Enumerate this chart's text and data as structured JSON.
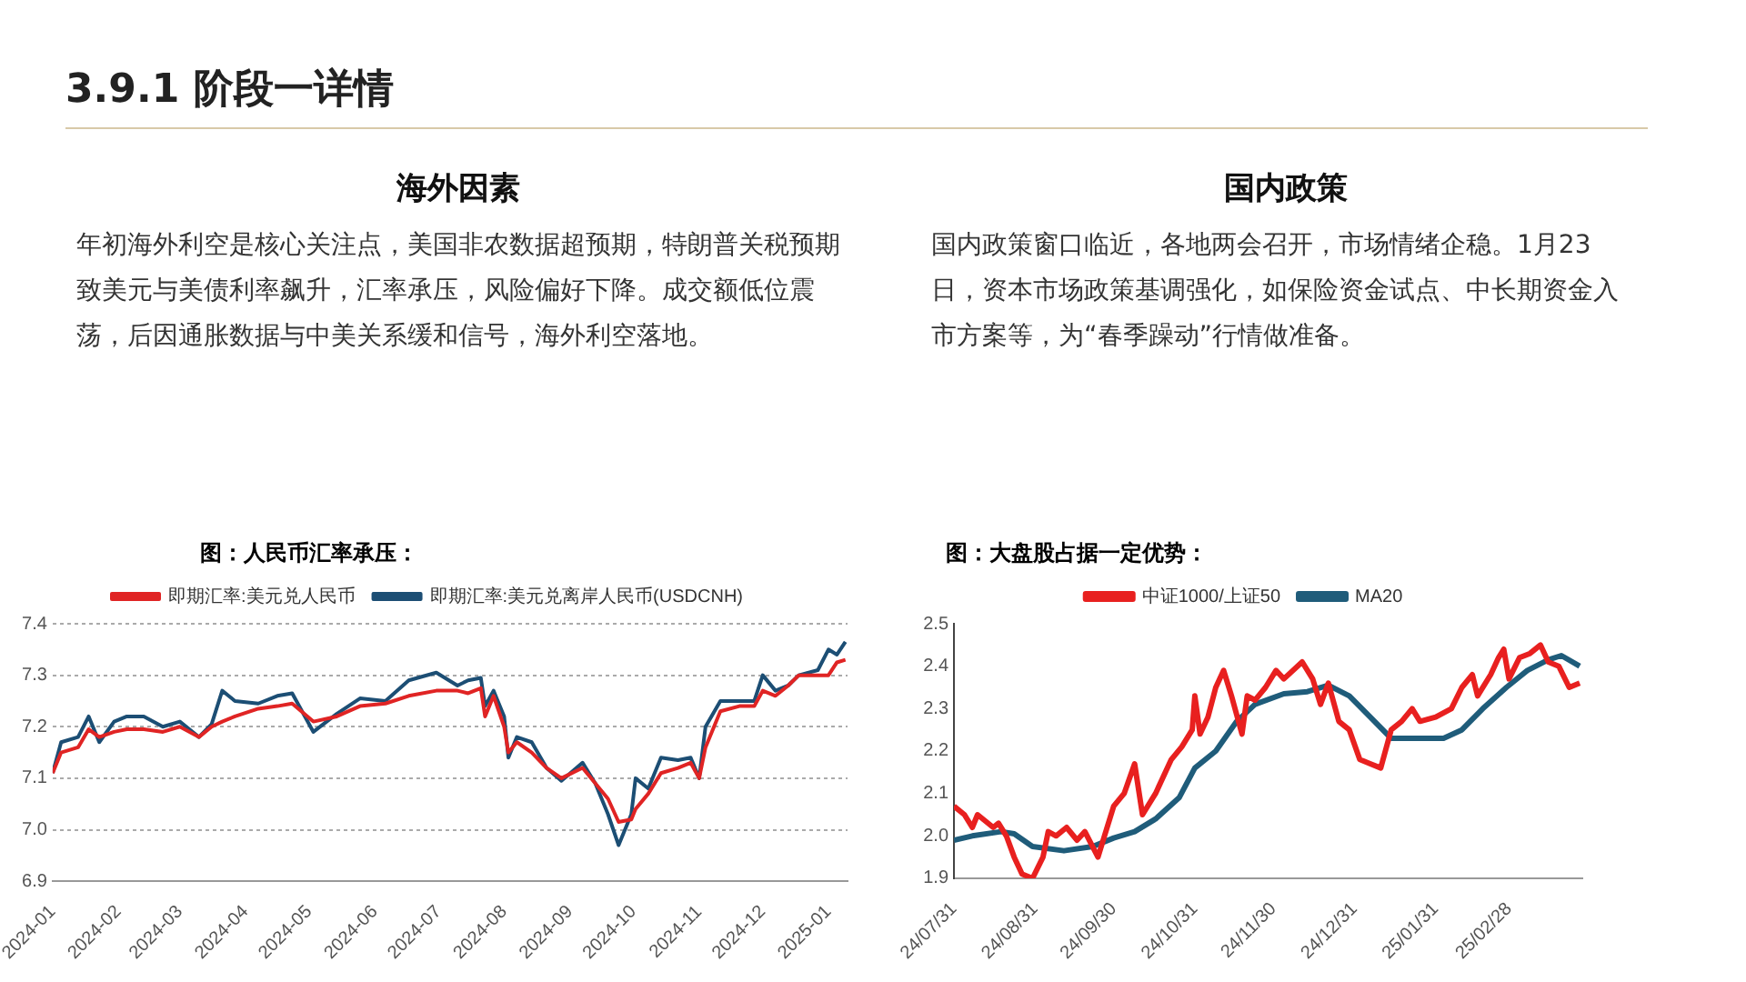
{
  "chart_data": [
    {
      "type": "other",
      "title": "3.9.1 阶段一详情"
    },
    {
      "type": "other",
      "title": "海外因素",
      "annotations": [
        "年初海外利空是核心关注点，美国非农数据超预期，特朗普关税预期致美元与美债利率飙升，汇率承压，风险偏好下降。成交额低位震荡，后因通胀数据与中美关系缓和信号，海外利空落地。"
      ]
    },
    {
      "type": "other",
      "title": "国内政策",
      "annotations": [
        "国内政策窗口临近，各地两会召开，市场情绪企稳。1月23日，资本市场政策基调强化，如保险资金试点、中长期资金入市方案等，为“春季躁动”行情做准备。"
      ]
    },
    {
      "type": "line",
      "title": "图：人民币汇率承压：",
      "legend": "top",
      "grid": "y",
      "marker": "none",
      "line_style": "solid",
      "x": [
        "2024-01-01",
        "2024-01-05",
        "2024-01-13",
        "2024-01-18",
        "2024-01-23",
        "2024-01-30",
        "2024-02-05",
        "2024-02-13",
        "2024-02-22",
        "2024-03-01",
        "2024-03-10",
        "2024-03-16",
        "2024-03-21",
        "2024-03-27",
        "2024-04-07",
        "2024-04-16",
        "2024-04-23",
        "2024-05-03",
        "2024-05-14",
        "2024-05-25",
        "2024-06-06",
        "2024-06-17",
        "2024-06-30",
        "2024-07-10",
        "2024-07-15",
        "2024-07-21",
        "2024-07-23",
        "2024-07-27",
        "2024-08-01",
        "2024-08-03",
        "2024-08-07",
        "2024-08-14",
        "2024-08-21",
        "2024-08-28",
        "2024-09-07",
        "2024-09-13",
        "2024-09-19",
        "2024-09-24",
        "2024-09-30",
        "2024-10-02",
        "2024-10-08",
        "2024-10-14",
        "2024-10-22",
        "2024-10-28",
        "2024-11-01",
        "2024-11-04",
        "2024-11-11",
        "2024-11-20",
        "2024-11-27",
        "2024-12-01",
        "2024-12-07",
        "2024-12-13",
        "2024-12-18",
        "2024-12-27",
        "2025-01-01",
        "2025-01-05",
        "2025-01-09"
      ],
      "xlim": [
        "2024-01-01",
        "2025-01-10"
      ],
      "xticks": [
        {
          "value": "2024-01-01",
          "label": "2024-01"
        },
        {
          "value": "2024-02-01",
          "label": "2024-02"
        },
        {
          "value": "2024-03-01",
          "label": "2024-03"
        },
        {
          "value": "2024-04-01",
          "label": "2024-04"
        },
        {
          "value": "2024-05-01",
          "label": "2024-05"
        },
        {
          "value": "2024-06-01",
          "label": "2024-06"
        },
        {
          "value": "2024-07-01",
          "label": "2024-07"
        },
        {
          "value": "2024-08-01",
          "label": "2024-08"
        },
        {
          "value": "2024-09-01",
          "label": "2024-09"
        },
        {
          "value": "2024-10-01",
          "label": "2024-10"
        },
        {
          "value": "2024-11-01",
          "label": "2024-11"
        },
        {
          "value": "2024-12-01",
          "label": "2024-12"
        },
        {
          "value": "2025-01-01",
          "label": "2025-01"
        }
      ],
      "ylim": [
        6.9,
        7.4
      ],
      "yticks": [
        {
          "value": 6.9,
          "label": "6.9"
        },
        {
          "value": 7.0,
          "label": "7.0"
        },
        {
          "value": 7.1,
          "label": "7.1"
        },
        {
          "value": 7.2,
          "label": "7.2"
        },
        {
          "value": 7.3,
          "label": "7.3"
        },
        {
          "value": 7.4,
          "label": "7.4"
        }
      ],
      "series": [
        {
          "name": "即期汇率:美元兑人民币",
          "color": "#e02424",
          "values": [
            7.11,
            7.15,
            7.16,
            7.195,
            7.18,
            7.19,
            7.195,
            7.195,
            7.19,
            7.2,
            7.18,
            7.2,
            7.21,
            7.22,
            7.235,
            7.24,
            7.245,
            7.21,
            7.22,
            7.24,
            7.245,
            7.26,
            7.27,
            7.27,
            7.265,
            7.275,
            7.22,
            7.26,
            7.2,
            7.15,
            7.17,
            7.15,
            7.12,
            7.1,
            7.12,
            7.09,
            7.06,
            7.015,
            7.02,
            7.04,
            7.07,
            7.11,
            7.12,
            7.13,
            7.1,
            7.16,
            7.23,
            7.24,
            7.24,
            7.27,
            7.26,
            7.28,
            7.3,
            7.3,
            7.3,
            7.325,
            7.33
          ]
        },
        {
          "name": "即期汇率:美元兑离岸人民币(USDCNH)",
          "color": "#1c4e74",
          "values": [
            7.11,
            7.17,
            7.18,
            7.22,
            7.17,
            7.21,
            7.22,
            7.22,
            7.2,
            7.21,
            7.18,
            7.205,
            7.27,
            7.25,
            7.245,
            7.26,
            7.265,
            7.19,
            7.225,
            7.255,
            7.25,
            7.29,
            7.305,
            7.28,
            7.29,
            7.295,
            7.24,
            7.27,
            7.22,
            7.14,
            7.18,
            7.17,
            7.12,
            7.095,
            7.13,
            7.09,
            7.03,
            6.97,
            7.03,
            7.1,
            7.08,
            7.14,
            7.135,
            7.14,
            7.1,
            7.2,
            7.25,
            7.25,
            7.25,
            7.3,
            7.27,
            7.28,
            7.3,
            7.31,
            7.35,
            7.34,
            7.365
          ]
        }
      ]
    },
    {
      "type": "line",
      "title": "图：大盘股占据一定优势：",
      "legend": "top",
      "marker": "none",
      "line_style": "solid",
      "xlim": [
        "2024-07-31",
        "2025-03-28"
      ],
      "xticks": [
        {
          "value": "2024-07-31",
          "label": "24/07/31"
        },
        {
          "value": "2024-08-31",
          "label": "24/08/31"
        },
        {
          "value": "2024-09-30",
          "label": "24/09/30"
        },
        {
          "value": "2024-10-31",
          "label": "24/10/31"
        },
        {
          "value": "2024-11-30",
          "label": "24/11/30"
        },
        {
          "value": "2024-12-31",
          "label": "24/12/31"
        },
        {
          "value": "2025-01-31",
          "label": "25/01/31"
        },
        {
          "value": "2025-02-28",
          "label": "25/02/28"
        }
      ],
      "ylim": [
        1.9,
        2.5
      ],
      "yticks": [
        {
          "value": 1.9,
          "label": "1.9"
        },
        {
          "value": 2.0,
          "label": "2.0"
        },
        {
          "value": 2.1,
          "label": "2.1"
        },
        {
          "value": 2.2,
          "label": "2.2"
        },
        {
          "value": 2.3,
          "label": "2.3"
        },
        {
          "value": 2.4,
          "label": "2.4"
        },
        {
          "value": 2.5,
          "label": "2.5"
        }
      ],
      "series": [
        {
          "name": "中证1000/上证50",
          "color": "#e8201f",
          "x": [
            "2024-07-31",
            "2024-08-04",
            "2024-08-07",
            "2024-08-09",
            "2024-08-15",
            "2024-08-17",
            "2024-08-20",
            "2024-08-23",
            "2024-08-26",
            "2024-08-30",
            "2024-09-03",
            "2024-09-05",
            "2024-09-08",
            "2024-09-12",
            "2024-09-16",
            "2024-09-19",
            "2024-09-24",
            "2024-09-26",
            "2024-09-30",
            "2024-10-04",
            "2024-10-08",
            "2024-10-11",
            "2024-10-16",
            "2024-10-22",
            "2024-10-26",
            "2024-10-30",
            "2024-10-31",
            "2024-11-02",
            "2024-11-05",
            "2024-11-08",
            "2024-11-11",
            "2024-11-14",
            "2024-11-18",
            "2024-11-20",
            "2024-11-23",
            "2024-11-27",
            "2024-12-01",
            "2024-12-04",
            "2024-12-11",
            "2024-12-15",
            "2024-12-18",
            "2024-12-21",
            "2024-12-25",
            "2024-12-29",
            "2025-01-02",
            "2025-01-06",
            "2025-01-10",
            "2025-01-14",
            "2025-01-18",
            "2025-01-22",
            "2025-01-25",
            "2025-01-31",
            "2025-02-06",
            "2025-02-10",
            "2025-02-14",
            "2025-02-16",
            "2025-02-21",
            "2025-02-24",
            "2025-02-26",
            "2025-02-28",
            "2025-03-04",
            "2025-03-08",
            "2025-03-12",
            "2025-03-15",
            "2025-03-19",
            "2025-03-23",
            "2025-03-27"
          ],
          "values": [
            2.07,
            2.05,
            2.02,
            2.05,
            2.02,
            2.03,
            2.0,
            1.95,
            1.91,
            1.9,
            1.95,
            2.01,
            2.0,
            2.02,
            1.99,
            2.01,
            1.95,
            1.99,
            2.07,
            2.1,
            2.17,
            2.05,
            2.1,
            2.18,
            2.21,
            2.25,
            2.33,
            2.24,
            2.28,
            2.35,
            2.39,
            2.33,
            2.24,
            2.33,
            2.32,
            2.35,
            2.39,
            2.37,
            2.41,
            2.37,
            2.31,
            2.36,
            2.27,
            2.25,
            2.18,
            2.17,
            2.16,
            2.25,
            2.27,
            2.3,
            2.27,
            2.28,
            2.3,
            2.35,
            2.38,
            2.33,
            2.38,
            2.42,
            2.44,
            2.37,
            2.42,
            2.43,
            2.45,
            2.41,
            2.4,
            2.35,
            2.36
          ]
        },
        {
          "name": "MA20",
          "color": "#1f5c7a",
          "x": [
            "2024-07-31",
            "2024-08-07",
            "2024-08-18",
            "2024-08-23",
            "2024-08-30",
            "2024-09-11",
            "2024-09-22",
            "2024-09-30",
            "2024-10-08",
            "2024-10-16",
            "2024-10-25",
            "2024-10-31",
            "2024-11-08",
            "2024-11-16",
            "2024-11-23",
            "2024-12-04",
            "2024-12-13",
            "2024-12-21",
            "2024-12-29",
            "2025-01-06",
            "2025-01-14",
            "2025-01-22",
            "2025-02-03",
            "2025-02-10",
            "2025-02-18",
            "2025-02-27",
            "2025-03-07",
            "2025-03-15",
            "2025-03-20",
            "2025-03-27"
          ],
          "values": [
            1.99,
            2.0,
            2.01,
            2.005,
            1.975,
            1.965,
            1.975,
            1.995,
            2.01,
            2.04,
            2.09,
            2.16,
            2.2,
            2.27,
            2.31,
            2.335,
            2.34,
            2.355,
            2.33,
            2.28,
            2.23,
            2.23,
            2.23,
            2.25,
            2.3,
            2.35,
            2.39,
            2.415,
            2.425,
            2.4
          ]
        }
      ]
    }
  ]
}
